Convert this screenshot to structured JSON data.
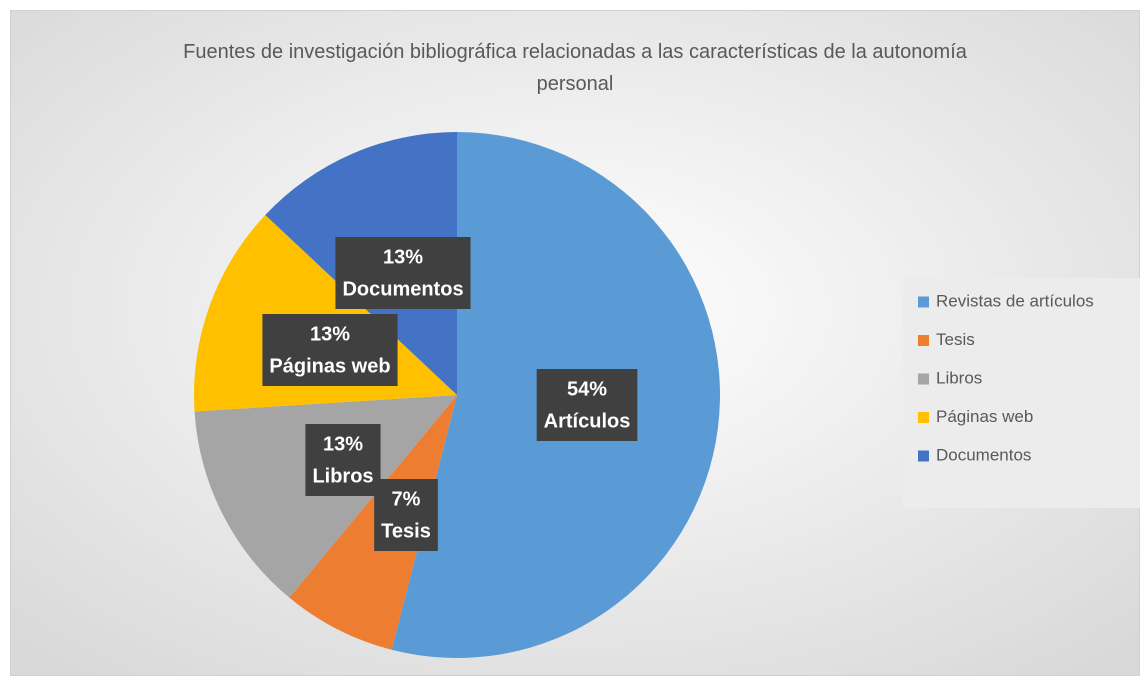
{
  "chart_data": {
    "type": "pie",
    "title": "Fuentes de investigación bibliográfica relacionadas a las características de la autonomía personal",
    "categories": [
      "Revistas de artículos",
      "Tesis",
      "Libros",
      "Páginas web",
      "Documentos"
    ],
    "values": [
      54,
      7,
      13,
      13,
      13
    ],
    "value_labels": [
      "54%",
      "7%",
      "13%",
      "13%",
      "13%"
    ],
    "data_label_names": [
      "Artículos",
      "Tesis",
      "Libros",
      "Páginas web",
      "Documentos"
    ],
    "colors": [
      "#5b9bd5",
      "#ed7d31",
      "#a5a5a5",
      "#ffc000",
      "#4472c4"
    ],
    "legend": "right"
  }
}
